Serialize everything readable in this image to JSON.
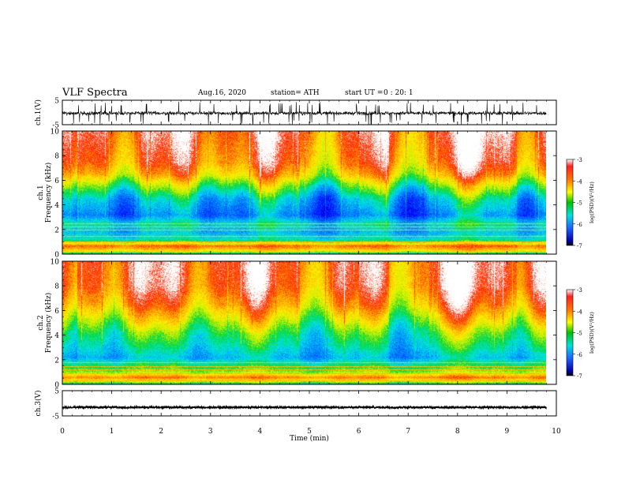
{
  "header": {
    "title": "VLF Spectra",
    "date": "Aug.16, 2020",
    "station": "station= ATH",
    "start_label": "start  UT  =",
    "start_time": "0 : 20: 1"
  },
  "chart_data": [
    {
      "type": "line",
      "panel": "ch1-waveform",
      "ylabel": "ch.1(V)",
      "ylim": [
        -5,
        5
      ],
      "yticks": [
        "5",
        "-5"
      ],
      "xlim": [
        0,
        10
      ],
      "waveform": {
        "center": -0.3,
        "typical_amplitude": 1.2,
        "peak_amplitude": 4.8,
        "x_end": 9.8
      }
    },
    {
      "type": "heatmap",
      "panel": "ch1-spectrogram",
      "ylabel": "ch.1\nFrequency (kHz)",
      "ylim": [
        0,
        10
      ],
      "yticks": [
        "0",
        "2",
        "4",
        "6",
        "8",
        "10"
      ],
      "xlim": [
        0,
        10
      ],
      "x_end": 9.8,
      "colorbar": {
        "label": "log(PSD)(V²/Hz)",
        "range": [
          -7,
          -3
        ],
        "ticks": [
          "-3",
          "-4",
          "-5",
          "-6",
          "-7"
        ]
      },
      "psd_profile": [
        {
          "f": 0.0,
          "log_psd": -5.6
        },
        {
          "f": 0.3,
          "log_psd": -4.2
        },
        {
          "f": 0.7,
          "log_psd": -3.6
        },
        {
          "f": 1.2,
          "log_psd": -5.3
        },
        {
          "f": 1.8,
          "log_psd": -5.6
        },
        {
          "f": 2.5,
          "log_psd": -5.3
        },
        {
          "f": 3.2,
          "log_psd": -5.9
        },
        {
          "f": 4.5,
          "log_psd": -5.5
        },
        {
          "f": 5.5,
          "log_psd": -4.8
        },
        {
          "f": 6.5,
          "log_psd": -4.0
        },
        {
          "f": 7.5,
          "log_psd": -3.6
        },
        {
          "f": 10.0,
          "log_psd": -3.3
        }
      ],
      "harmonic_lines_khz": [
        0.2,
        0.5,
        0.75,
        1.05,
        1.5,
        2.0,
        2.25,
        2.5
      ]
    },
    {
      "type": "heatmap",
      "panel": "ch2-spectrogram",
      "ylabel": "ch.2\nFrequency (kHz)",
      "ylim": [
        0,
        10
      ],
      "yticks": [
        "0",
        "2",
        "4",
        "6",
        "8",
        "10"
      ],
      "xlim": [
        0,
        10
      ],
      "x_end": 9.8,
      "colorbar": {
        "label": "log(PSD)(V²/Hz)",
        "range": [
          -7,
          -3
        ],
        "ticks": [
          "-3",
          "-4",
          "-5",
          "-6",
          "-7"
        ]
      },
      "psd_profile": [
        {
          "f": 0.0,
          "log_psd": -5.4
        },
        {
          "f": 0.3,
          "log_psd": -4.3
        },
        {
          "f": 0.6,
          "log_psd": -3.7
        },
        {
          "f": 1.0,
          "log_psd": -4.6
        },
        {
          "f": 1.5,
          "log_psd": -5.0
        },
        {
          "f": 2.2,
          "log_psd": -5.6
        },
        {
          "f": 3.0,
          "log_psd": -5.3
        },
        {
          "f": 4.2,
          "log_psd": -4.9
        },
        {
          "f": 5.2,
          "log_psd": -4.4
        },
        {
          "f": 6.5,
          "log_psd": -3.8
        },
        {
          "f": 8.0,
          "log_psd": -3.4
        },
        {
          "f": 10.0,
          "log_psd": -3.3
        }
      ],
      "harmonic_lines_khz": [
        0.3,
        0.6,
        0.9,
        1.2,
        1.5,
        1.8
      ]
    },
    {
      "type": "line",
      "panel": "ch3-waveform",
      "ylabel": "ch.3(V)",
      "ylim": [
        -5,
        5
      ],
      "yticks": [
        "5",
        "-5"
      ],
      "xlim": [
        0,
        10
      ],
      "xticks": [
        "0",
        "1",
        "2",
        "3",
        "4",
        "5",
        "6",
        "7",
        "8",
        "9",
        "10"
      ],
      "xlabel": "Time  (min)",
      "waveform": {
        "center": -1.6,
        "typical_amplitude": 0.35,
        "peak_amplitude": 0.4,
        "x_end": 9.8
      }
    }
  ],
  "colors": {
    "frame": "#000000",
    "background": "#ffffff",
    "waveform": "#000000"
  }
}
